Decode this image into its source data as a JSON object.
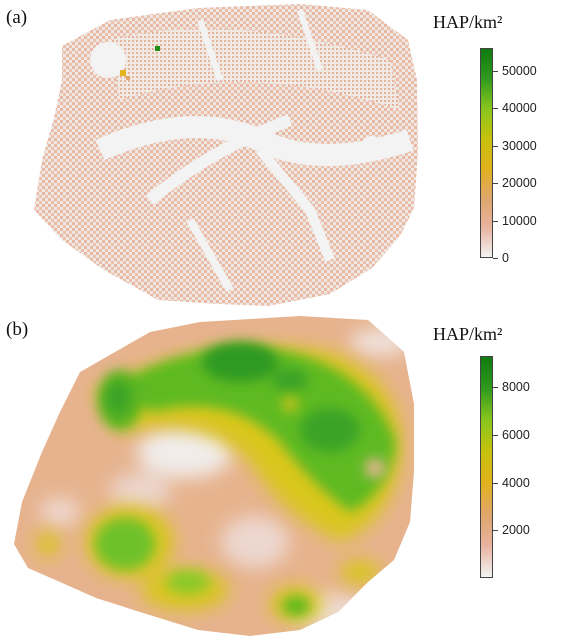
{
  "panels": [
    {
      "id": "a",
      "label": "(a)",
      "legend": {
        "title": "HAP/km²",
        "min": 0,
        "max": 56000,
        "ticks": [
          "50000",
          "40000",
          "30000",
          "20000",
          "10000",
          "0"
        ],
        "tick_values": [
          50000,
          40000,
          30000,
          20000,
          10000,
          0
        ],
        "colors": [
          "#f2f2f2",
          "#e8b3a0",
          "#dfa56a",
          "#e2b21c",
          "#c6c20d",
          "#88c51d",
          "#2f9a1d",
          "#0f7a0f"
        ]
      }
    },
    {
      "id": "b",
      "label": "(b)",
      "legend": {
        "title": "HAP/km²",
        "min": 0,
        "max": 9300,
        "ticks": [
          "8000",
          "6000",
          "4000",
          "2000"
        ],
        "tick_values": [
          8000,
          6000,
          4000,
          2000
        ],
        "colors": [
          "#f2f2f2",
          "#e8b3a0",
          "#dfa56a",
          "#e2b21c",
          "#c6c20d",
          "#88c51d",
          "#2f9a1d",
          "#0f7a0f"
        ]
      }
    }
  ]
}
